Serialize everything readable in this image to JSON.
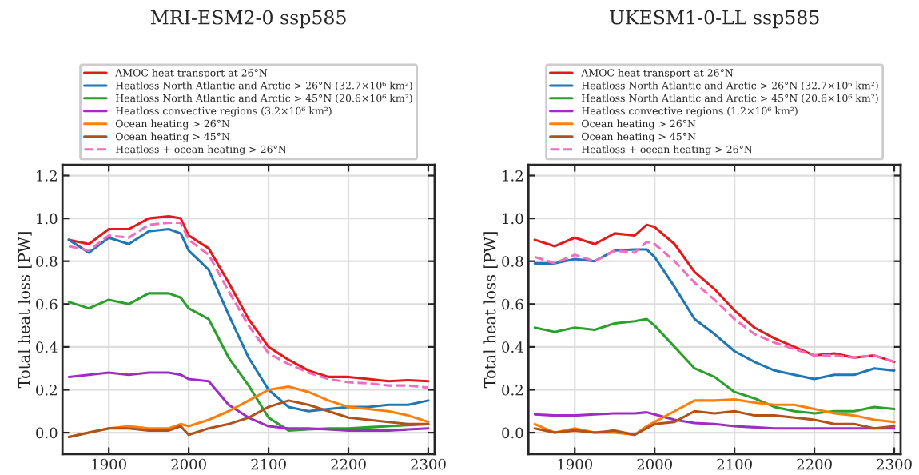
{
  "chart_data": [
    {
      "type": "line",
      "title": "MRI-ESM2-0 ssp585",
      "ylabel": "Total heat loss [PW]",
      "x": [
        1850,
        1875,
        1900,
        1925,
        1950,
        1975,
        1990,
        2000,
        2025,
        2050,
        2075,
        2100,
        2125,
        2150,
        2175,
        2200,
        2225,
        2250,
        2275,
        2300
      ],
      "xlim": [
        1842,
        2308
      ],
      "ylim": [
        -0.1,
        1.25
      ],
      "xticks": [
        1900,
        2000,
        2100,
        2200,
        2300
      ],
      "yticks": [
        {
          "value": 0,
          "label": "0.0"
        },
        {
          "value": 0.2,
          "label": "0.2"
        },
        {
          "value": 0.4,
          "label": "0.4"
        },
        {
          "value": 0.6,
          "label": "0.6"
        },
        {
          "value": 0.8,
          "label": "0.8"
        },
        {
          "value": 1.0,
          "label": "1.0"
        },
        {
          "value": 1.2,
          "label": "1.2"
        }
      ],
      "grid": true,
      "legend": "top",
      "marker": "none",
      "series": [
        {
          "name": "AMOC heat transport at 26°N",
          "color": "#e31a1c",
          "line_style": "solid",
          "values": [
            0.9,
            0.88,
            0.95,
            0.95,
            1.0,
            1.01,
            1.0,
            0.92,
            0.86,
            0.7,
            0.53,
            0.4,
            0.34,
            0.29,
            0.26,
            0.26,
            0.25,
            0.24,
            0.245,
            0.24
          ]
        },
        {
          "name": "Heatloss North Atlantic and Arctic > 26°N (32.7×10⁶ km²)",
          "color": "#1f77b4",
          "line_style": "solid",
          "values": [
            0.9,
            0.84,
            0.91,
            0.88,
            0.94,
            0.95,
            0.93,
            0.85,
            0.76,
            0.55,
            0.35,
            0.2,
            0.12,
            0.1,
            0.11,
            0.12,
            0.12,
            0.13,
            0.13,
            0.15
          ]
        },
        {
          "name": "Heatloss North Atlantic and Arctic > 45°N (20.6×10⁶ km²)",
          "color": "#2ca02c",
          "line_style": "solid",
          "values": [
            0.61,
            0.58,
            0.62,
            0.6,
            0.65,
            0.65,
            0.63,
            0.58,
            0.53,
            0.35,
            0.22,
            0.07,
            0.01,
            0.015,
            0.02,
            0.02,
            0.025,
            0.03,
            0.035,
            0.04
          ]
        },
        {
          "name": "Heatloss convective regions (3.2×10⁶ km²)",
          "color": "#9b30c0",
          "line_style": "solid",
          "values": [
            0.26,
            0.27,
            0.28,
            0.27,
            0.28,
            0.28,
            0.27,
            0.25,
            0.24,
            0.13,
            0.07,
            0.03,
            0.02,
            0.02,
            0.015,
            0.01,
            0.01,
            0.01,
            0.015,
            0.02
          ]
        },
        {
          "name": "Ocean heating > 26°N",
          "color": "#ff7f0e",
          "line_style": "solid",
          "values": [
            -0.02,
            0.0,
            0.02,
            0.03,
            0.02,
            0.02,
            0.04,
            0.03,
            0.06,
            0.1,
            0.15,
            0.2,
            0.215,
            0.19,
            0.15,
            0.12,
            0.11,
            0.1,
            0.08,
            0.05
          ]
        },
        {
          "name": "Ocean heating > 45°N",
          "color": "#b0521c",
          "line_style": "solid",
          "values": [
            -0.02,
            0.0,
            0.02,
            0.02,
            0.01,
            0.01,
            0.03,
            -0.01,
            0.02,
            0.04,
            0.07,
            0.12,
            0.15,
            0.13,
            0.1,
            0.07,
            0.06,
            0.05,
            0.04,
            0.04
          ]
        },
        {
          "name": "Heatloss + ocean heating > 26°N",
          "color": "#f06ec0",
          "line_style": "dashed",
          "values": [
            0.87,
            0.85,
            0.92,
            0.91,
            0.97,
            0.98,
            0.98,
            0.9,
            0.83,
            0.66,
            0.5,
            0.37,
            0.32,
            0.28,
            0.25,
            0.235,
            0.23,
            0.22,
            0.22,
            0.21
          ]
        }
      ]
    },
    {
      "type": "line",
      "title": "UKESM1-0-LL ssp585",
      "ylabel": "Total heat loss [PW]",
      "x": [
        1850,
        1875,
        1900,
        1925,
        1950,
        1975,
        1990,
        2000,
        2025,
        2050,
        2075,
        2100,
        2125,
        2150,
        2175,
        2200,
        2225,
        2250,
        2275,
        2300
      ],
      "xlim": [
        1842,
        2308
      ],
      "ylim": [
        -0.1,
        1.25
      ],
      "xticks": [
        1900,
        2000,
        2100,
        2200,
        2300
      ],
      "yticks": [
        {
          "value": 0,
          "label": "0.0"
        },
        {
          "value": 0.2,
          "label": "0.2"
        },
        {
          "value": 0.4,
          "label": "0.4"
        },
        {
          "value": 0.6,
          "label": "0.6"
        },
        {
          "value": 0.8,
          "label": "0.8"
        },
        {
          "value": 1.0,
          "label": "1.0"
        },
        {
          "value": 1.2,
          "label": "1.2"
        }
      ],
      "grid": true,
      "legend": "top",
      "marker": "none",
      "series": [
        {
          "name": "AMOC heat transport at 26°N",
          "color": "#e31a1c",
          "line_style": "solid",
          "values": [
            0.9,
            0.87,
            0.91,
            0.88,
            0.93,
            0.92,
            0.97,
            0.96,
            0.88,
            0.75,
            0.67,
            0.57,
            0.49,
            0.44,
            0.4,
            0.36,
            0.37,
            0.35,
            0.36,
            0.33
          ]
        },
        {
          "name": "Heatloss North Atlantic and Arctic > 26°N (32.7×10⁶ km²)",
          "color": "#1f77b4",
          "line_style": "solid",
          "values": [
            0.79,
            0.79,
            0.81,
            0.8,
            0.85,
            0.855,
            0.855,
            0.82,
            0.68,
            0.53,
            0.46,
            0.38,
            0.33,
            0.29,
            0.27,
            0.25,
            0.27,
            0.27,
            0.3,
            0.29
          ]
        },
        {
          "name": "Heatloss North Atlantic and Arctic > 45°N (20.6×10⁶ km²)",
          "color": "#2ca02c",
          "line_style": "solid",
          "values": [
            0.49,
            0.47,
            0.49,
            0.48,
            0.51,
            0.52,
            0.53,
            0.5,
            0.4,
            0.3,
            0.26,
            0.19,
            0.16,
            0.12,
            0.1,
            0.09,
            0.1,
            0.1,
            0.12,
            0.11
          ]
        },
        {
          "name": "Heatloss convective regions (1.2×10⁶ km²)",
          "color": "#9b30c0",
          "line_style": "solid",
          "values": [
            0.085,
            0.08,
            0.08,
            0.085,
            0.09,
            0.09,
            0.095,
            0.085,
            0.06,
            0.045,
            0.04,
            0.03,
            0.025,
            0.02,
            0.02,
            0.02,
            0.02,
            0.02,
            0.02,
            0.02
          ]
        },
        {
          "name": "Ocean heating > 26°N",
          "color": "#ff7f0e",
          "line_style": "solid",
          "values": [
            0.04,
            0.0,
            0.02,
            0.0,
            0.0,
            -0.01,
            0.03,
            0.05,
            0.1,
            0.15,
            0.15,
            0.155,
            0.14,
            0.13,
            0.13,
            0.11,
            0.09,
            0.08,
            0.06,
            0.05
          ]
        },
        {
          "name": "Ocean heating > 45°N",
          "color": "#b0521c",
          "line_style": "solid",
          "values": [
            0.02,
            0.0,
            0.01,
            0.0,
            0.01,
            -0.01,
            0.02,
            0.04,
            0.05,
            0.1,
            0.09,
            0.1,
            0.08,
            0.08,
            0.07,
            0.06,
            0.04,
            0.04,
            0.02,
            0.03
          ]
        },
        {
          "name": "Heatloss + ocean heating > 26°N",
          "color": "#f06ec0",
          "line_style": "dashed",
          "values": [
            0.82,
            0.79,
            0.83,
            0.8,
            0.85,
            0.84,
            0.89,
            0.88,
            0.8,
            0.7,
            0.62,
            0.53,
            0.46,
            0.42,
            0.39,
            0.36,
            0.36,
            0.35,
            0.36,
            0.33
          ]
        }
      ]
    }
  ]
}
